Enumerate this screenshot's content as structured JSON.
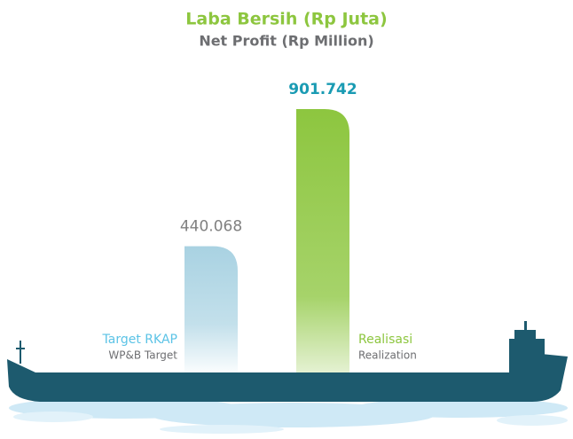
{
  "chart_data": {
    "type": "bar",
    "title": "Laba Bersih (Rp Juta)",
    "subtitle": "Net Profit (Rp Million)",
    "categories": [
      "Target RKAP",
      "Realisasi"
    ],
    "category_translations": [
      "WP&B Target",
      "Realization"
    ],
    "values": [
      440068,
      901742
    ],
    "value_labels": [
      "440.068",
      "901.742"
    ],
    "colors": [
      "#a9d2e2",
      "#8dc63f"
    ]
  }
}
